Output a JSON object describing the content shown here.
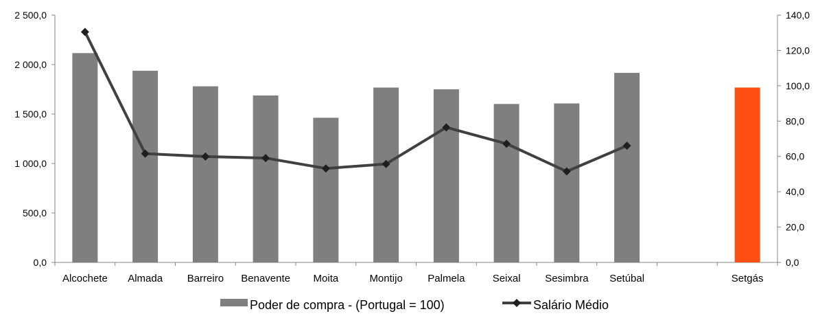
{
  "chart_data": {
    "type": "bar",
    "categories": [
      "Alcochete",
      "Almada",
      "Barreiro",
      "Benavente",
      "Moita",
      "Montijo",
      "Palmela",
      "Seixal",
      "Sesimbra",
      "Setúbal",
      "",
      "Setgás"
    ],
    "series": [
      {
        "name": "Poder de compra - (Portugal = 100)",
        "chart": "bar",
        "axis": "right",
        "values": [
          118.5,
          108.5,
          99.7,
          94.5,
          81.9,
          99.0,
          98.0,
          89.7,
          90.0,
          107.3,
          null,
          99.0
        ],
        "color": "#7f7f7f",
        "highlight": {
          "index": 11,
          "color": "#ff4f14"
        }
      },
      {
        "name": "Salário Médio",
        "chart": "line",
        "axis": "left",
        "values": [
          2330,
          1100,
          1070,
          1055,
          950,
          995,
          1365,
          1200,
          920,
          1180,
          null,
          null
        ],
        "color": "#404040"
      }
    ],
    "y_left": {
      "min": 0,
      "max": 2500,
      "step": 500,
      "tick_labels": [
        "0,0",
        "500,0",
        "1 000,0",
        "1 500,0",
        "2 000,0",
        "2 500,0"
      ]
    },
    "y_right": {
      "min": 0,
      "max": 140,
      "step": 20,
      "tick_labels": [
        "0,0",
        "20,0",
        "40,0",
        "60,0",
        "80,0",
        "100,0",
        "120,0",
        "140,0"
      ]
    },
    "grid": false,
    "legend": {
      "position": "bottom",
      "entries": [
        "Poder de compra - (Portugal = 100)",
        "Salário Médio"
      ]
    }
  }
}
